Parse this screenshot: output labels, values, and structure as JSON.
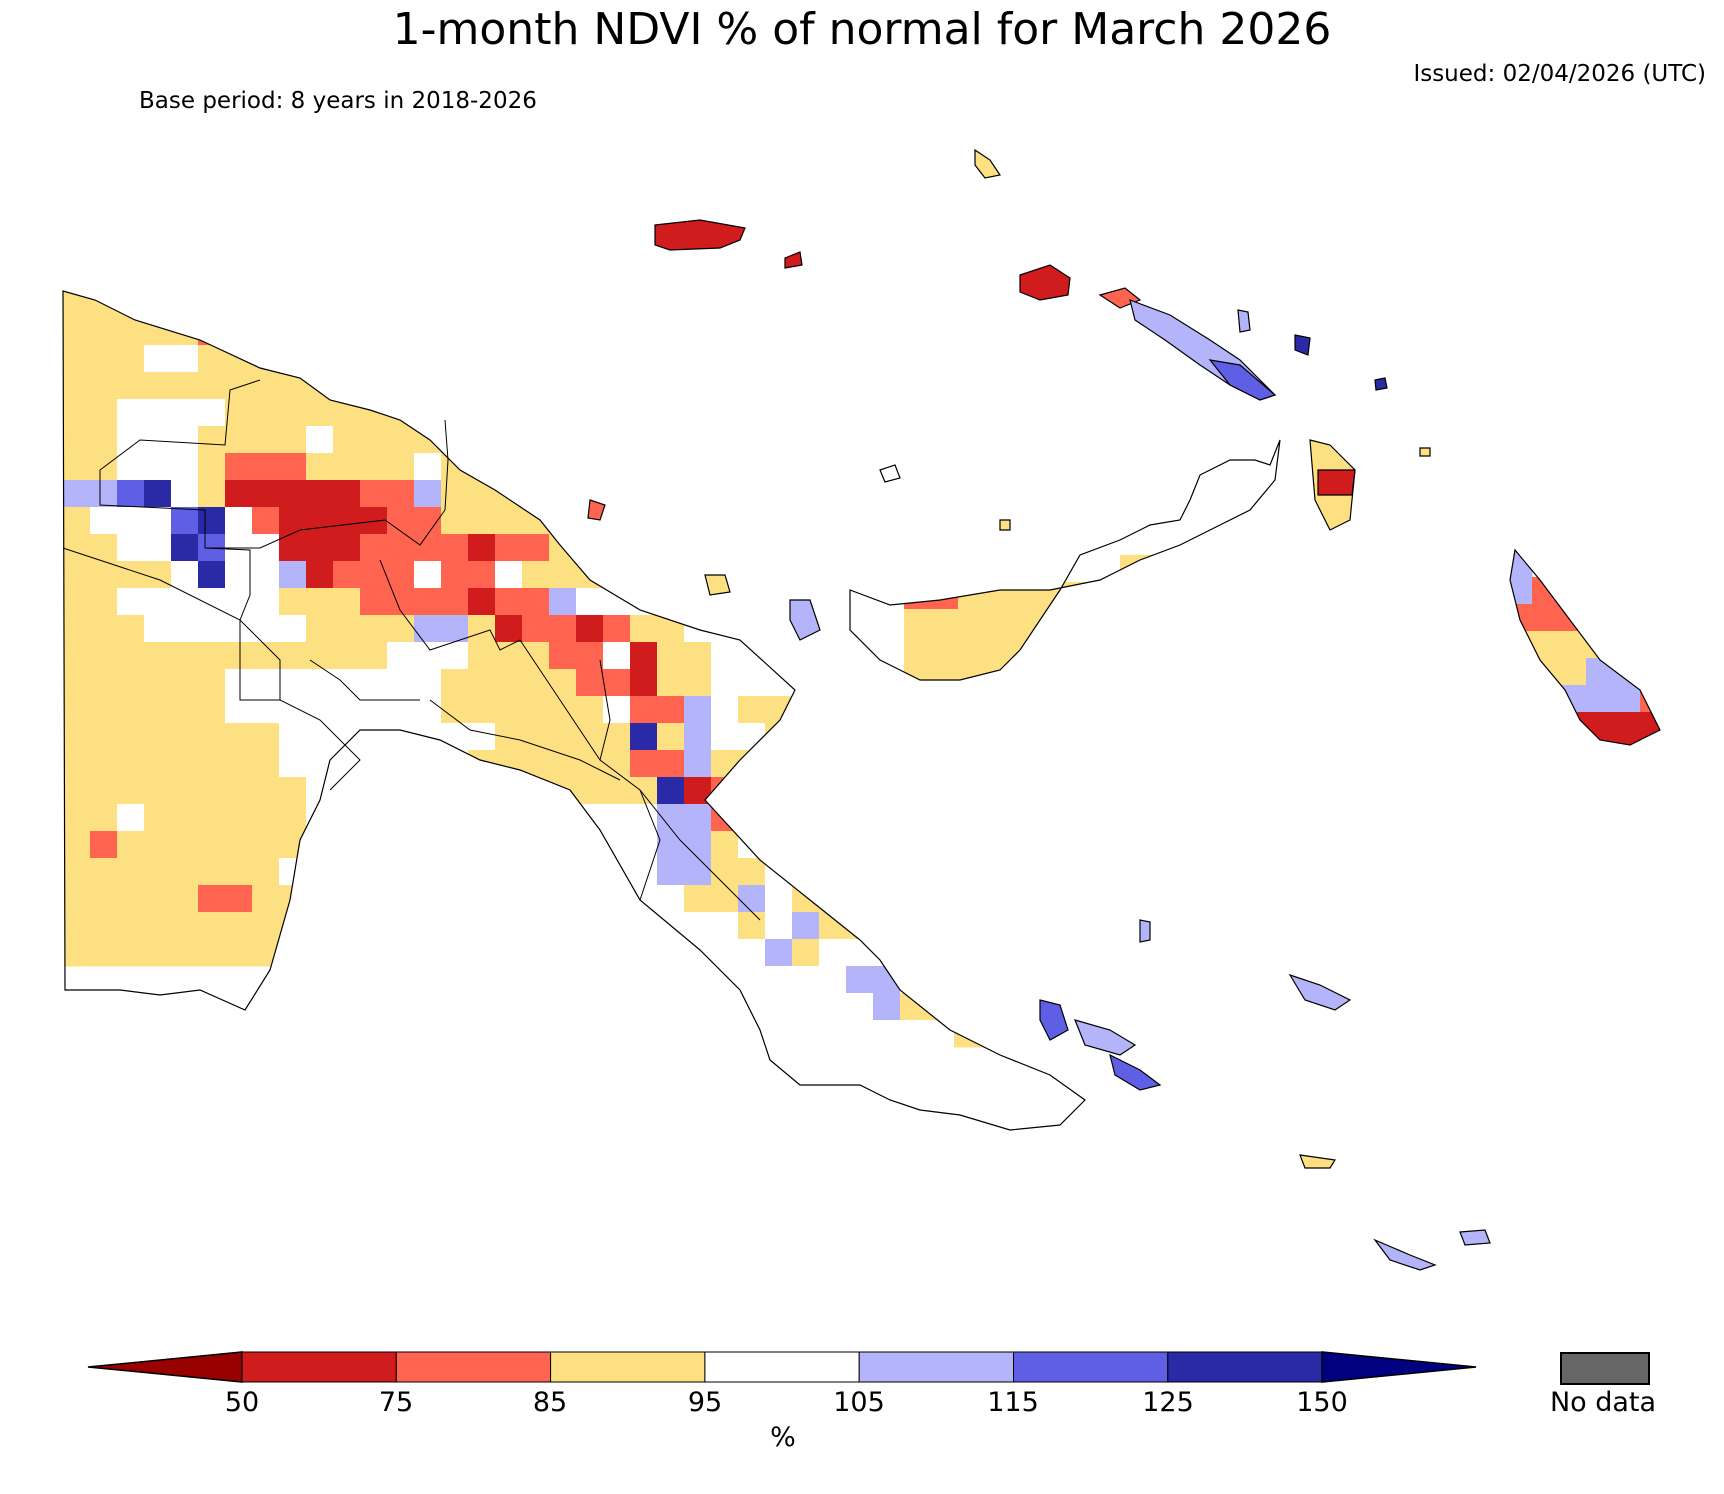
{
  "title": "1-month NDVI % of normal for March 2026",
  "issued": "Issued: 02/04/2026 (UTC)",
  "base_period": "Base period: 8 years in 2018-2026",
  "legend": {
    "unit": "%",
    "ticks": [
      "50",
      "75",
      "85",
      "95",
      "105",
      "115",
      "125",
      "150"
    ],
    "classes": [
      {
        "range": "<50",
        "color": "#990000"
      },
      {
        "range": "50-75",
        "color": "#d01c1c"
      },
      {
        "range": "75-85",
        "color": "#ff6450"
      },
      {
        "range": "85-95",
        "color": "#fde082"
      },
      {
        "range": "95-105",
        "color": "#ffffff"
      },
      {
        "range": "105-115",
        "color": "#b4b4fa"
      },
      {
        "range": "115-125",
        "color": "#5f5fe6"
      },
      {
        "range": "125-150",
        "color": "#2a2aa6"
      },
      {
        "range": ">150",
        "color": "#000080"
      }
    ],
    "no_data_label": "No data",
    "no_data_color": "#666666"
  }
}
